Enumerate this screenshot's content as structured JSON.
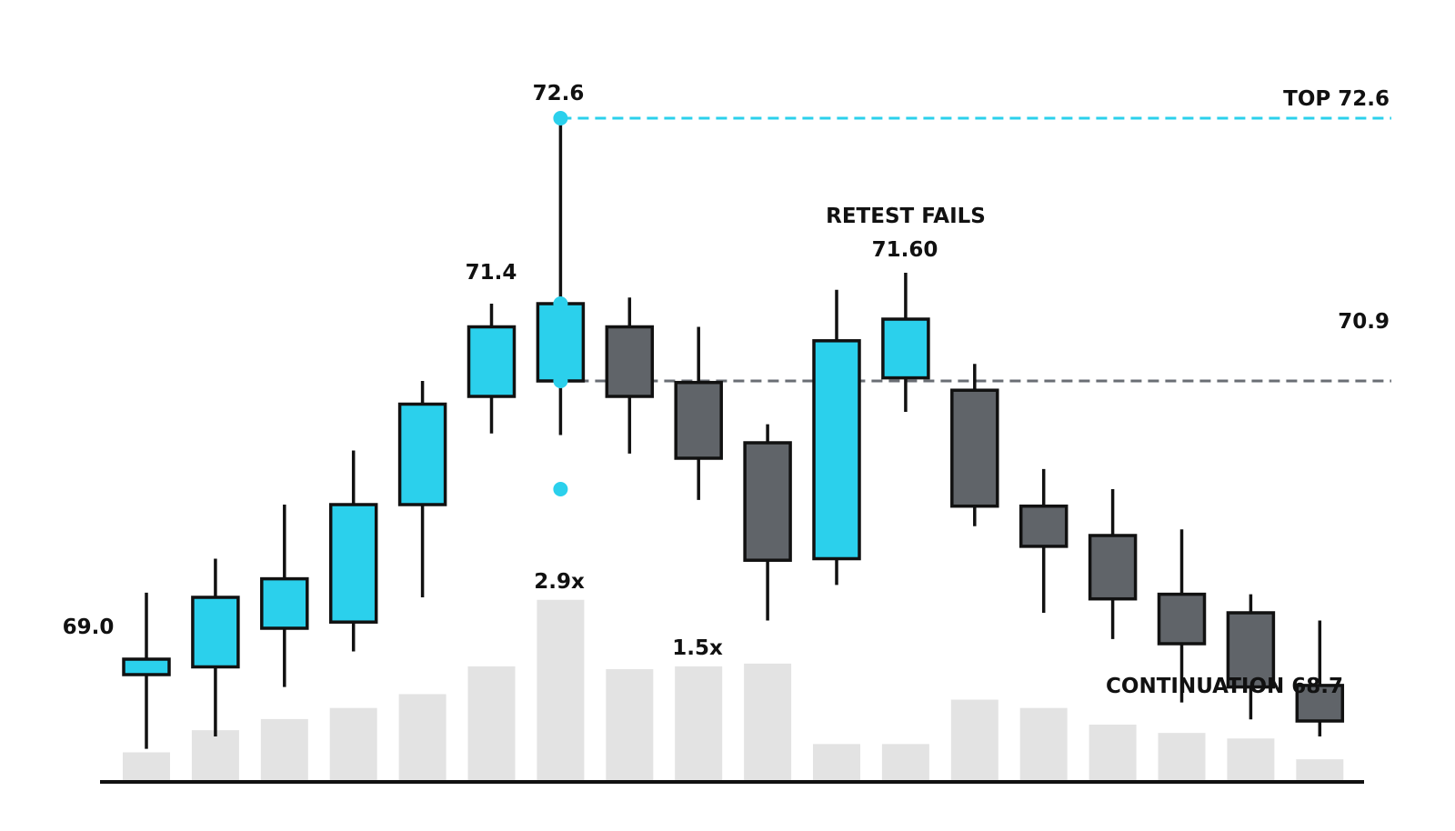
{
  "chart_data": {
    "type": "candlestick",
    "colors": {
      "up": "#2bd0ec",
      "down": "#606469",
      "outline": "#111111",
      "volume": "#e3e3e3",
      "top_line": "#2bd0ec",
      "level_line": "#6a6e74",
      "baseline": "#111111"
    },
    "candles": [
      {
        "open": 69.0,
        "high": 69.53,
        "low": 68.52,
        "close": 69.1,
        "volume": 1.0
      },
      {
        "open": 69.05,
        "high": 69.75,
        "low": 68.6,
        "close": 69.5,
        "volume": 1.8
      },
      {
        "open": 69.3,
        "high": 70.1,
        "low": 68.92,
        "close": 69.62,
        "volume": 2.2
      },
      {
        "open": 69.34,
        "high": 70.45,
        "low": 69.15,
        "close": 70.1,
        "volume": 2.6
      },
      {
        "open": 70.1,
        "high": 70.9,
        "low": 69.5,
        "close": 70.75,
        "volume": 3.1
      },
      {
        "open": 70.8,
        "high": 71.4,
        "low": 70.56,
        "close": 71.25,
        "volume": 4.1
      },
      {
        "open": 70.9,
        "high": 72.6,
        "low": 70.55,
        "close": 71.4,
        "volume": 6.5
      },
      {
        "open": 71.25,
        "high": 71.44,
        "low": 70.43,
        "close": 70.8,
        "volume": 4.0
      },
      {
        "open": 70.89,
        "high": 71.25,
        "low": 70.13,
        "close": 70.4,
        "volume": 4.1
      },
      {
        "open": 70.5,
        "high": 70.62,
        "low": 69.35,
        "close": 69.74,
        "volume": 4.2
      },
      {
        "open": 69.75,
        "high": 71.49,
        "low": 69.58,
        "close": 71.16,
        "volume": 1.3
      },
      {
        "open": 70.92,
        "high": 71.6,
        "low": 70.7,
        "close": 71.3,
        "volume": 1.3
      },
      {
        "open": 70.84,
        "high": 71.01,
        "low": 69.96,
        "close": 70.09,
        "volume": 2.9
      },
      {
        "open": 70.09,
        "high": 70.33,
        "low": 69.4,
        "close": 69.83,
        "volume": 2.6
      },
      {
        "open": 69.9,
        "high": 70.2,
        "low": 69.23,
        "close": 69.49,
        "volume": 2.0
      },
      {
        "open": 69.52,
        "high": 69.94,
        "low": 68.82,
        "close": 69.2,
        "volume": 1.7
      },
      {
        "open": 69.4,
        "high": 69.52,
        "low": 68.71,
        "close": 68.92,
        "volume": 1.5
      },
      {
        "open": 68.93,
        "high": 69.35,
        "low": 68.6,
        "close": 68.7,
        "volume": 0.75
      }
    ],
    "annotations": {
      "start": "69.0",
      "peak_high": "72.6",
      "prior_high": "71.4",
      "retest_title": "RETEST FAILS",
      "retest_value": "71.60",
      "top_level": "TOP 72.6",
      "level": "70.9",
      "volume_peak": "2.9x",
      "volume_second": "1.5x",
      "continuation": "CONTINUATION 68.7"
    },
    "top_line_value": 72.6,
    "level_line_value": 70.9,
    "peak_index": 6,
    "peak_markers": [
      72.6,
      71.4,
      70.9,
      70.2
    ],
    "ylim": [
      68.0,
      73.0
    ],
    "grid": false,
    "legend": "none"
  }
}
